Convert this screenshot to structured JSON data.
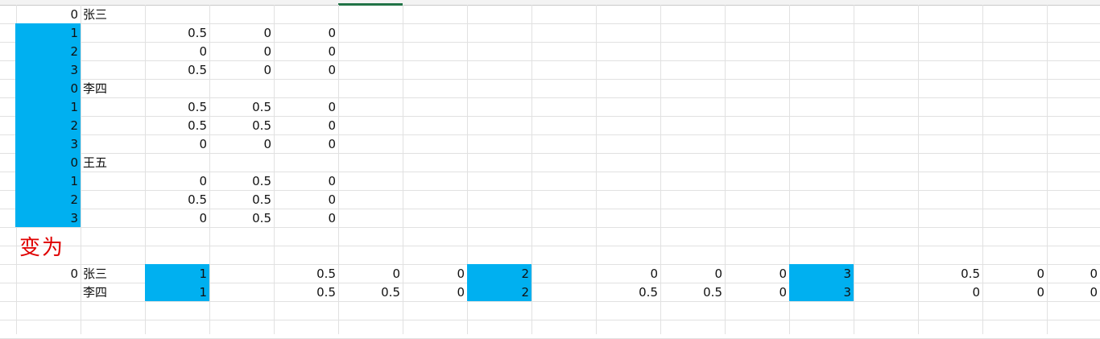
{
  "accent_fill_color": "#00b0f0",
  "label_color": "#e00000",
  "label_text": "变为",
  "upper_rows": [
    {
      "index": "0",
      "name": "张三",
      "p": "",
      "q": "",
      "r": ""
    },
    {
      "index": "1",
      "name": "",
      "p": "0.5",
      "q": "0",
      "r": "0"
    },
    {
      "index": "2",
      "name": "",
      "p": "0",
      "q": "0",
      "r": "0"
    },
    {
      "index": "3",
      "name": "",
      "p": "0.5",
      "q": "0",
      "r": "0"
    },
    {
      "index": "0",
      "name": "李四",
      "p": "",
      "q": "",
      "r": ""
    },
    {
      "index": "1",
      "name": "",
      "p": "0.5",
      "q": "0.5",
      "r": "0"
    },
    {
      "index": "2",
      "name": "",
      "p": "0.5",
      "q": "0.5",
      "r": "0"
    },
    {
      "index": "3",
      "name": "",
      "p": "0",
      "q": "0",
      "r": "0"
    },
    {
      "index": "0",
      "name": "王五",
      "p": "",
      "q": "",
      "r": ""
    },
    {
      "index": "1",
      "name": "",
      "p": "0",
      "q": "0.5",
      "r": "0"
    },
    {
      "index": "2",
      "name": "",
      "p": "0.5",
      "q": "0.5",
      "r": "0"
    },
    {
      "index": "3",
      "name": "",
      "p": "0",
      "q": "0.5",
      "r": "0"
    }
  ],
  "lower_rows": [
    {
      "index": "0",
      "name": "张三",
      "values": [
        "1",
        "",
        "0.5",
        "0",
        "0",
        "2",
        "",
        "0",
        "0",
        "0",
        "3",
        "",
        "0.5",
        "0",
        "0"
      ]
    },
    {
      "index": "",
      "name": "李四",
      "values": [
        "1",
        "",
        "0.5",
        "0.5",
        "0",
        "2",
        "",
        "0.5",
        "0.5",
        "0",
        "3",
        "",
        "0",
        "0",
        "0"
      ]
    }
  ]
}
